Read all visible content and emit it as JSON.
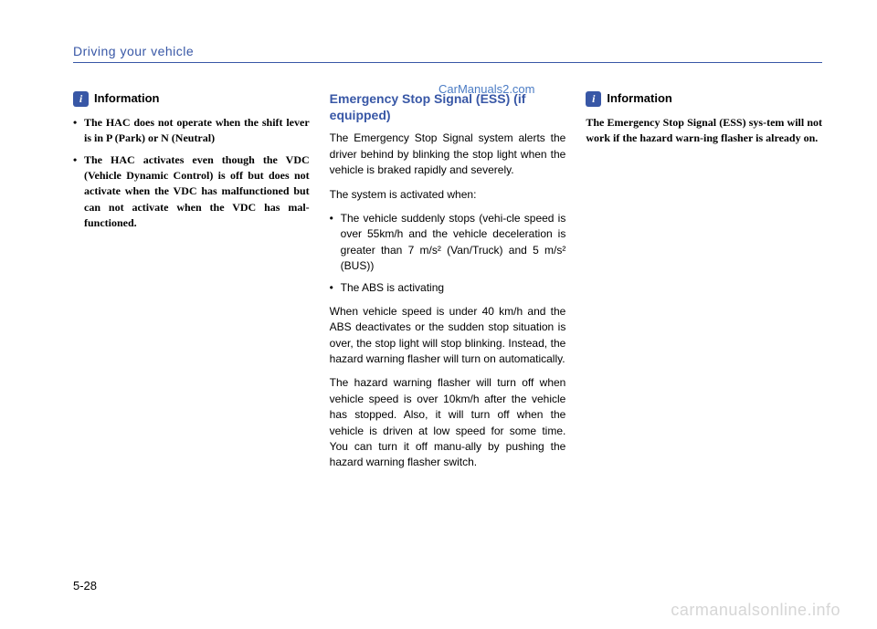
{
  "header": {
    "title": "Driving your vehicle",
    "accent_color": "#3857a6",
    "font_family": "Comic Sans MS"
  },
  "watermark_top": "CarManuals2.com",
  "watermark_bottom": "carmanualsonline.info",
  "page_number": "5-28",
  "columns": {
    "left": {
      "info_title": "Information",
      "bullets": [
        "The HAC does not operate when the shift lever is in P (Park) or N (Neutral)",
        "The HAC activates even though the VDC (Vehicle Dynamic Control) is off but does not activate when the VDC has malfunctioned but can not activate when the VDC has mal-functioned."
      ]
    },
    "center": {
      "section_title": "Emergency Stop Signal (ESS) (if equipped)",
      "para1": "The Emergency Stop Signal system alerts the driver behind by blinking the stop light when the vehicle is braked rapidly and severely.",
      "para2": "The system is activated when:",
      "bullets": [
        "The vehicle suddenly stops (vehi-cle speed is over 55km/h and the vehicle deceleration is greater than 7 m/s² (Van/Truck) and 5 m/s² (BUS))",
        "The ABS is activating"
      ],
      "para3": "When vehicle speed is under 40 km/h and the ABS deactivates or the sudden stop situation is over, the stop light will stop blinking. Instead, the hazard warning flasher will turn on automatically.",
      "para4": "The hazard warning flasher will turn off when vehicle speed is over 10km/h after the vehicle has stopped. Also, it will turn off when the vehicle is driven at low speed for some time. You can turn it off manu-ally by pushing the hazard warning flasher switch."
    },
    "right": {
      "info_title": "Information",
      "body": "The Emergency Stop Signal (ESS) sys-tem will not work if the hazard warn-ing flasher is already on."
    }
  },
  "styles": {
    "page_bg": "#ffffff",
    "text_color": "#000000",
    "accent_color": "#3857a6",
    "watermark_top_color": "#4a7bc4",
    "watermark_bottom_color": "#d6d6d6",
    "body_fontsize": 12,
    "title_fontsize": 14,
    "info_icon_bg": "#3857a6",
    "info_icon_fg": "#ffffff"
  }
}
